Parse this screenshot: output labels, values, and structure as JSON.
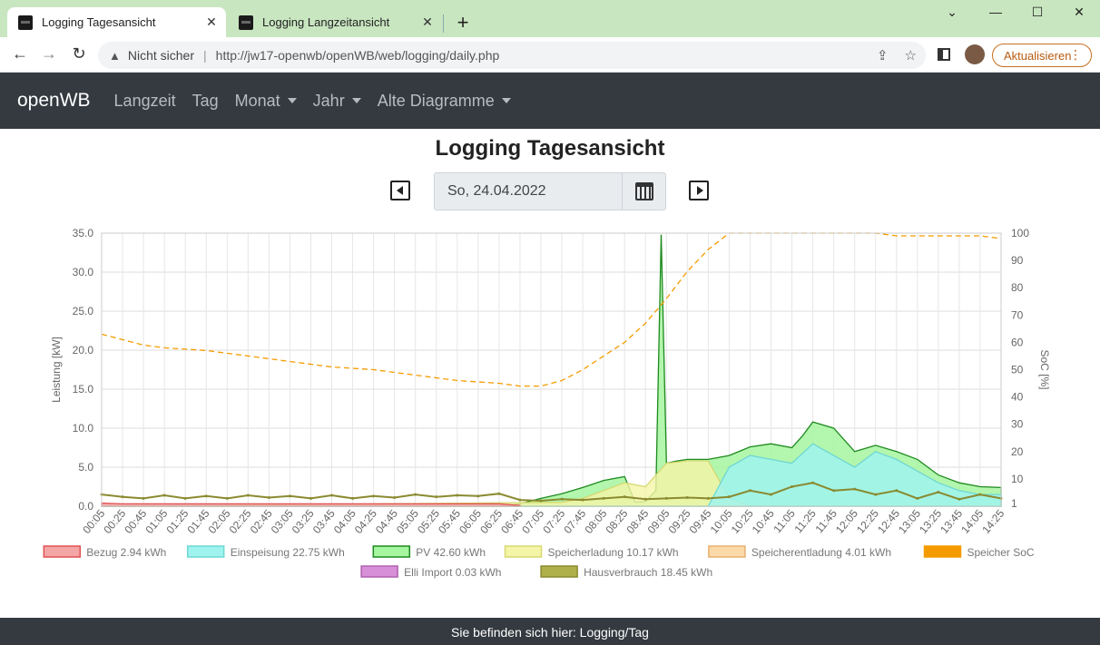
{
  "browser": {
    "tabs": [
      {
        "label": "Logging Tagesansicht",
        "active": true
      },
      {
        "label": "Logging Langzeitansicht",
        "active": false
      }
    ],
    "security_label": "Nicht sicher",
    "url": "http://jw17-openwb/openWB/web/logging/daily.php",
    "update_label": "Aktualisieren"
  },
  "nav": {
    "brand": "openWB",
    "items": [
      {
        "label": "Langzeit",
        "dropdown": false
      },
      {
        "label": "Tag",
        "dropdown": false
      },
      {
        "label": "Monat",
        "dropdown": true
      },
      {
        "label": "Jahr",
        "dropdown": true
      },
      {
        "label": "Alte Diagramme",
        "dropdown": true
      }
    ]
  },
  "page": {
    "title": "Logging Tagesansicht",
    "date": "So, 24.04.2022"
  },
  "footer": {
    "text": "Sie befinden sich hier: Logging/Tag"
  },
  "chart_data": {
    "type": "area",
    "ylabel": "Leistung [kW]",
    "y2label": "SoC [%]",
    "ylim": [
      0,
      35
    ],
    "y2lim": [
      0,
      100
    ],
    "yticks": [
      "35.0",
      "30.0",
      "25.0",
      "20.0",
      "15.0",
      "10.0",
      "5.0",
      "0.0"
    ],
    "y2ticks": [
      "100",
      "90",
      "80",
      "70",
      "60",
      "50",
      "40",
      "30",
      "20",
      "10",
      "1"
    ],
    "xticks": [
      "00:05",
      "00:25",
      "00:45",
      "01:05",
      "01:25",
      "01:45",
      "02:05",
      "02:25",
      "02:45",
      "03:05",
      "03:25",
      "03:45",
      "04:05",
      "04:25",
      "04:45",
      "05:05",
      "05:25",
      "05:45",
      "06:05",
      "06:25",
      "06:45",
      "07:05",
      "07:25",
      "07:45",
      "08:05",
      "08:25",
      "08:45",
      "09:05",
      "09:25",
      "09:45",
      "10:05",
      "10:25",
      "10:45",
      "11:05",
      "11:25",
      "11:45",
      "12:05",
      "12:25",
      "12:45",
      "13:05",
      "13:25",
      "13:45",
      "14:05",
      "14:25"
    ],
    "grid": true,
    "legend_position": "bottom",
    "legend": [
      {
        "label": "Bezug 2.94 kWh",
        "fill": "#f4a6a6",
        "stroke": "#e05050"
      },
      {
        "label": "Einspeisung 22.75 kWh",
        "fill": "#9ff3ef",
        "stroke": "#6fd7d3"
      },
      {
        "label": "PV 42.60 kWh",
        "fill": "#a6f5a0",
        "stroke": "#1e8a1e"
      },
      {
        "label": "Speicherladung 10.17 kWh",
        "fill": "#f5f5a8",
        "stroke": "#d8d870"
      },
      {
        "label": "Speicherentladung 4.01 kWh",
        "fill": "#fbd9a8",
        "stroke": "#e8b070"
      },
      {
        "label": "Speicher SoC",
        "fill": "#f59b00",
        "stroke": "#f59b00"
      },
      {
        "label": "Elli Import 0.03 kWh",
        "fill": "#d78fd7",
        "stroke": "#b060b0"
      },
      {
        "label": "Hausverbrauch 18.45 kWh",
        "fill": "#b0b04a",
        "stroke": "#8a8a30"
      }
    ],
    "series": [
      {
        "name": "Speicher SoC",
        "axis": "right",
        "x": [
          "00:05",
          "00:25",
          "00:45",
          "01:05",
          "01:45",
          "02:25",
          "03:05",
          "03:45",
          "04:25",
          "05:05",
          "05:45",
          "06:25",
          "06:45",
          "07:05",
          "07:25",
          "07:45",
          "08:05",
          "08:25",
          "08:45",
          "09:05",
          "09:25",
          "09:45",
          "10:05",
          "10:25",
          "11:05",
          "11:45",
          "12:25",
          "12:45",
          "13:25",
          "14:05",
          "14:25"
        ],
        "values": [
          63,
          61,
          59,
          58,
          57,
          55,
          53,
          51,
          50,
          48,
          46,
          45,
          44,
          44,
          46,
          50,
          55,
          60,
          67,
          76,
          86,
          94,
          100,
          100,
          100,
          100,
          100,
          99,
          99,
          99,
          98
        ]
      },
      {
        "name": "PV",
        "axis": "left",
        "x": [
          "00:05",
          "06:25",
          "06:45",
          "07:05",
          "07:25",
          "07:45",
          "08:05",
          "08:25",
          "08:35",
          "08:45",
          "08:55",
          "09:00",
          "09:05",
          "09:15",
          "09:25",
          "09:45",
          "10:05",
          "10:25",
          "10:45",
          "11:05",
          "11:15",
          "11:25",
          "11:45",
          "12:05",
          "12:25",
          "12:45",
          "13:05",
          "13:25",
          "13:45",
          "14:05",
          "14:25"
        ],
        "values": [
          0,
          0,
          0.3,
          1.0,
          1.6,
          2.4,
          3.3,
          3.8,
          0.5,
          0.6,
          2.0,
          34.8,
          5.5,
          5.8,
          6.0,
          6.0,
          6.5,
          7.6,
          8.0,
          7.5,
          9.0,
          10.8,
          10.0,
          7.0,
          7.8,
          7.0,
          6.0,
          4.0,
          3.0,
          2.5,
          2.4
        ]
      },
      {
        "name": "Einspeisung",
        "axis": "left",
        "x": [
          "00:05",
          "09:45",
          "10:05",
          "10:25",
          "10:45",
          "11:05",
          "11:25",
          "11:45",
          "12:05",
          "12:25",
          "12:45",
          "13:05",
          "13:25",
          "13:45",
          "14:05",
          "14:25"
        ],
        "values": [
          0,
          0,
          5.0,
          6.5,
          6.0,
          5.5,
          8.0,
          6.5,
          5.0,
          7.0,
          6.0,
          4.5,
          3.0,
          2.0,
          1.5,
          1.5
        ]
      },
      {
        "name": "Speicherladung",
        "axis": "left",
        "x": [
          "00:05",
          "07:25",
          "07:45",
          "08:05",
          "08:25",
          "08:45",
          "09:05",
          "09:25",
          "09:45",
          "10:05",
          "10:25"
        ],
        "values": [
          0,
          0.5,
          1.0,
          2.0,
          3.0,
          2.5,
          5.5,
          5.8,
          5.8,
          1.0,
          0
        ]
      },
      {
        "name": "Hausverbrauch",
        "axis": "left",
        "x": [
          "00:05",
          "00:25",
          "00:45",
          "01:05",
          "01:25",
          "01:45",
          "02:05",
          "02:25",
          "02:45",
          "03:05",
          "03:25",
          "03:45",
          "04:05",
          "04:25",
          "04:45",
          "05:05",
          "05:25",
          "05:45",
          "06:05",
          "06:25",
          "06:45",
          "07:05",
          "07:25",
          "07:45",
          "08:05",
          "08:25",
          "08:45",
          "09:05",
          "09:25",
          "09:45",
          "10:05",
          "10:25",
          "10:45",
          "11:05",
          "11:25",
          "11:45",
          "12:05",
          "12:25",
          "12:45",
          "13:05",
          "13:25",
          "13:45",
          "14:05",
          "14:25"
        ],
        "values": [
          1.5,
          1.2,
          1.0,
          1.4,
          1.0,
          1.3,
          1.0,
          1.4,
          1.1,
          1.3,
          1.0,
          1.4,
          1.0,
          1.3,
          1.1,
          1.5,
          1.2,
          1.4,
          1.3,
          1.6,
          0.8,
          0.7,
          0.9,
          0.8,
          1.0,
          1.2,
          0.9,
          1.0,
          1.1,
          1.0,
          1.2,
          2.0,
          1.5,
          2.5,
          3.0,
          2.0,
          2.2,
          1.5,
          2.0,
          1.0,
          1.8,
          0.9,
          1.5,
          1.0
        ]
      },
      {
        "name": "Bezug",
        "axis": "left",
        "x": [
          "00:05",
          "00:25",
          "00:45",
          "01:05",
          "01:25",
          "01:45",
          "02:05",
          "02:25",
          "02:45",
          "03:05",
          "03:25",
          "03:45",
          "04:05",
          "04:25",
          "04:45",
          "05:05",
          "05:25",
          "05:45",
          "06:05",
          "06:25",
          "06:45"
        ],
        "values": [
          0.4,
          0.3,
          0.3,
          0.3,
          0.3,
          0.3,
          0.3,
          0.3,
          0.3,
          0.3,
          0.3,
          0.3,
          0.3,
          0.3,
          0.3,
          0.3,
          0.3,
          0.3,
          0.3,
          0.3,
          0.1
        ]
      }
    ]
  }
}
